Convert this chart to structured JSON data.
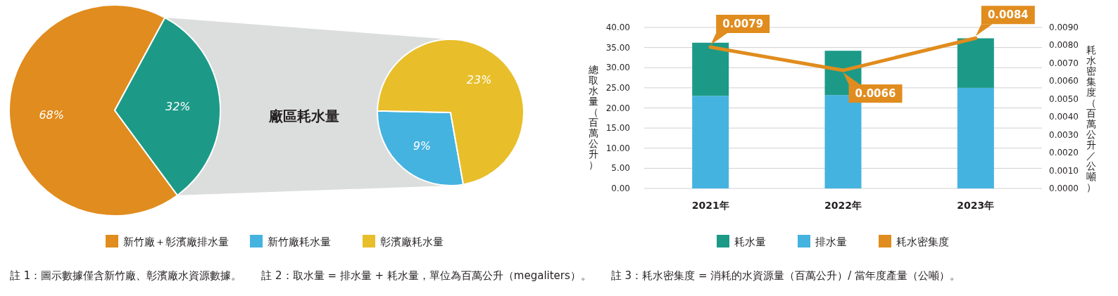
{
  "chart_data": [
    {
      "type": "pie",
      "categories": [
        "新竹廠＋彰濱廠排水量",
        null
      ],
      "values": [
        68,
        32
      ],
      "colors": [
        "#e08c1e",
        "#1c9a87"
      ],
      "value_labels": [
        "68%",
        "32%"
      ],
      "legend": "bottom"
    },
    {
      "type": "pie",
      "title": "廠區耗水量",
      "categories": [
        "新竹廠耗水量",
        "彰濱廠耗水量"
      ],
      "values": [
        9,
        23
      ],
      "colors": [
        "#45b3e0",
        "#e8be2a"
      ],
      "value_labels": [
        "9%",
        "23%"
      ],
      "legend": "bottom"
    },
    {
      "type": "bar",
      "stacked": true,
      "categories": [
        "2021年",
        "2022年",
        "2023年"
      ],
      "series": [
        {
          "name": "排水量",
          "color": "#45b3e0",
          "values": [
            23.0,
            23.2,
            25.0
          ]
        },
        {
          "name": "耗水量",
          "color": "#1c9a87",
          "values": [
            13.2,
            11.0,
            12.3
          ]
        },
        {
          "name": "耗水密集度",
          "type": "line",
          "axis": "y2",
          "color": "#e08c1e",
          "values": [
            0.0079,
            0.0066,
            0.0084
          ],
          "value_labels": [
            "0.0079",
            "0.0066",
            "0.0084"
          ]
        }
      ],
      "ylabel": "總取水量（百萬公升）",
      "y2label": "耗水密集度（百萬公升／公噸）",
      "ylim": [
        0,
        40
      ],
      "yticks": [
        {
          "value": 0,
          "label": "0.00"
        },
        {
          "value": 5,
          "label": "5.00"
        },
        {
          "value": 10,
          "label": "10.00"
        },
        {
          "value": 15,
          "label": "15.00"
        },
        {
          "value": 20,
          "label": "20.00"
        },
        {
          "value": 25,
          "label": "25.00"
        },
        {
          "value": 30,
          "label": "30.00"
        },
        {
          "value": 35,
          "label": "35.00"
        },
        {
          "value": 40,
          "label": "40.00"
        }
      ],
      "y2lim": [
        0,
        0.009
      ],
      "y2ticks": [
        {
          "value": 0,
          "label": "0.0000"
        },
        {
          "value": 0.001,
          "label": "0.0010"
        },
        {
          "value": 0.002,
          "label": "0.0020"
        },
        {
          "value": 0.003,
          "label": "0.0030"
        },
        {
          "value": 0.004,
          "label": "0.0040"
        },
        {
          "value": 0.005,
          "label": "0.0050"
        },
        {
          "value": 0.006,
          "label": "0.0060"
        },
        {
          "value": 0.007,
          "label": "0.0070"
        },
        {
          "value": 0.008,
          "label": "0.0080"
        },
        {
          "value": 0.009,
          "label": "0.0090"
        }
      ],
      "grid": "y",
      "legend": "bottom",
      "annotations": [
        "註 1：圖示數據僅含新竹廠、彰濱廠水資源數據。",
        "註 2：取水量 = 排水量 + 耗水量，單位為百萬公升（megaliters）。",
        "註 3：耗水密集度 = 消耗的水資源量（百萬公升）/ 當年度產量（公噸）。"
      ]
    }
  ]
}
